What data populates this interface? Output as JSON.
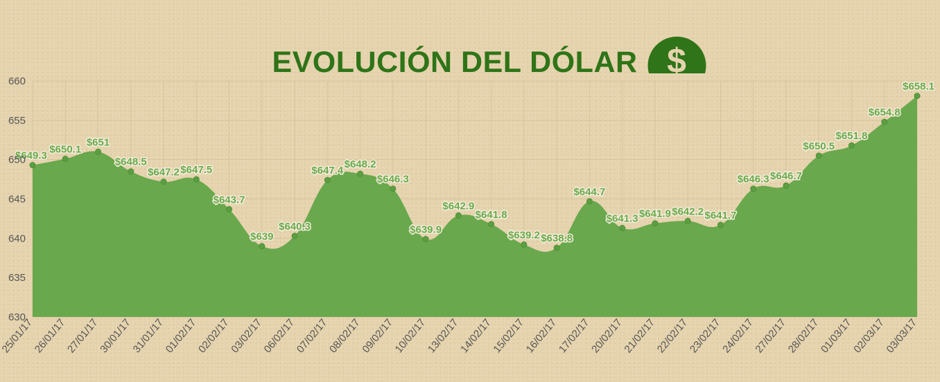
{
  "title": "EVOLUCIÓN DEL DÓLAR",
  "logo_symbol": "$",
  "colors": {
    "area_fill": "#69a84d",
    "point": "#5c9e42",
    "title": "#2f7418",
    "logo": "#2f7418",
    "grid": "#d8c49c",
    "background": "#e5d3ad",
    "label": "#6aaa4c"
  },
  "chart_data": {
    "type": "area",
    "title": "EVOLUCIÓN DEL DÓLAR",
    "xlabel": "",
    "ylabel": "",
    "ylim": [
      630,
      660
    ],
    "yticks": [
      630,
      635,
      640,
      645,
      650,
      655,
      660
    ],
    "x": [
      "25/01/17",
      "26/01/17",
      "27/01/17",
      "30/01/17",
      "31/01/17",
      "01/02/17",
      "02/02/17",
      "03/02/17",
      "06/02/17",
      "07/02/17",
      "08/02/17",
      "09/02/17",
      "10/02/17",
      "13/02/17",
      "14/02/17",
      "15/02/17",
      "16/02/17",
      "17/02/17",
      "20/02/17",
      "21/02/17",
      "22/02/17",
      "23/02/17",
      "24/02/17",
      "27/02/17",
      "28/02/17",
      "01/03/17",
      "02/03/17",
      "03/03/17"
    ],
    "values": [
      649.3,
      650.1,
      651,
      648.5,
      647.2,
      647.5,
      643.7,
      639,
      640.3,
      647.4,
      648.2,
      646.3,
      639.9,
      642.9,
      641.8,
      639.2,
      638.8,
      644.7,
      641.3,
      641.9,
      642.2,
      641.7,
      646.3,
      646.7,
      650.5,
      651.8,
      654.8,
      658.1
    ],
    "labels": [
      "$649.3",
      "$650.1",
      "$651",
      "$648.5",
      "$647.2",
      "$647.5",
      "$643.7",
      "$639",
      "$640.3",
      "$647.4",
      "$648.2",
      "$646.3",
      "$639.9",
      "$642.9",
      "$641.8",
      "$639.2",
      "$638.8",
      "$644.7",
      "$641.3",
      "$641.9",
      "$642.2",
      "$641.7",
      "$646.3",
      "$646.7",
      "$650.5",
      "$651.8",
      "$654.8",
      "$658.1"
    ],
    "grid": true,
    "legend": "none"
  }
}
